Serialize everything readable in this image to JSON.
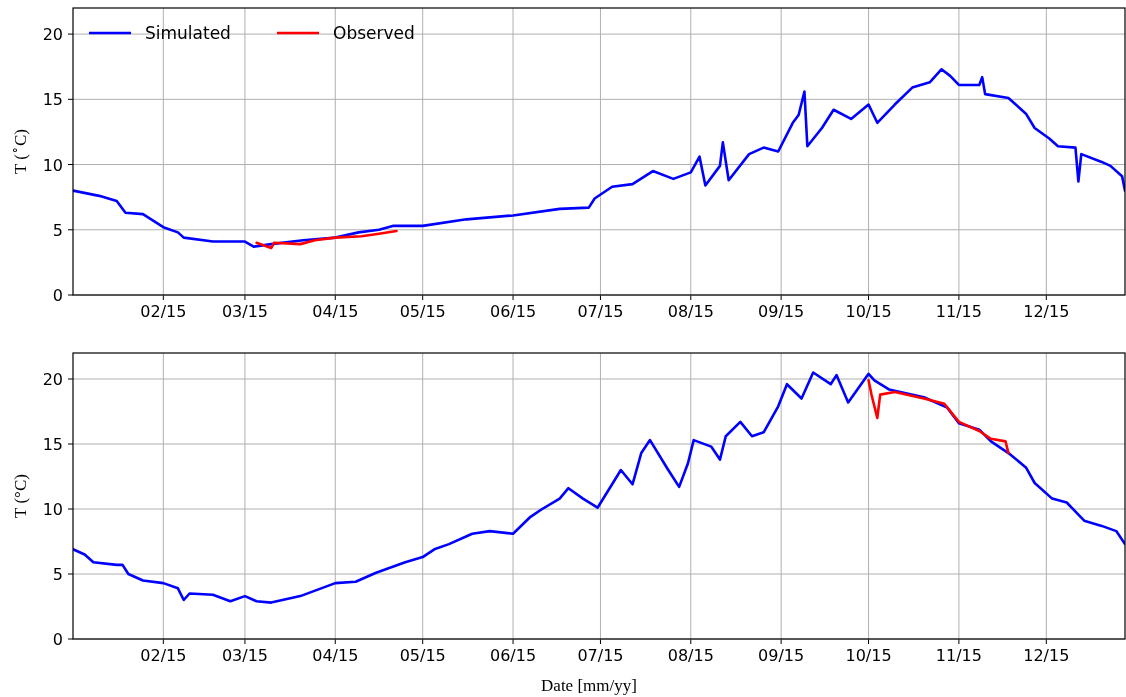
{
  "chart_data": [
    {
      "type": "line",
      "ylabel": "T ($^{∘}$C)",
      "xlim": [
        "2015-01-01",
        "2015-12-28"
      ],
      "ylim": [
        0,
        22
      ],
      "yticks": [
        0,
        5,
        10,
        15,
        20
      ],
      "xticks": [
        {
          "value": "2015-02-01",
          "label": "02/15"
        },
        {
          "value": "2015-03-01",
          "label": "03/15"
        },
        {
          "value": "2015-04-01",
          "label": "04/15"
        },
        {
          "value": "2015-05-01",
          "label": "05/15"
        },
        {
          "value": "2015-06-01",
          "label": "06/15"
        },
        {
          "value": "2015-07-01",
          "label": "07/15"
        },
        {
          "value": "2015-08-01",
          "label": "08/15"
        },
        {
          "value": "2015-09-01",
          "label": "09/15"
        },
        {
          "value": "2015-10-01",
          "label": "10/15"
        },
        {
          "value": "2015-11-01",
          "label": "11/15"
        },
        {
          "value": "2015-12-01",
          "label": "12/15"
        }
      ],
      "grid": true,
      "legend": "top left",
      "line_style": "solid",
      "series": [
        {
          "name": "Simulated",
          "color": "#0000ff",
          "x": [
            "2015-01-01",
            "2015-01-10",
            "2015-01-16",
            "2015-01-19",
            "2015-01-25",
            "2015-02-01",
            "2015-02-06",
            "2015-02-08",
            "2015-02-18",
            "2015-03-01",
            "2015-03-04",
            "2015-03-10",
            "2015-03-21",
            "2015-04-01",
            "2015-04-09",
            "2015-04-16",
            "2015-04-21",
            "2015-05-01",
            "2015-05-16",
            "2015-06-01",
            "2015-06-17",
            "2015-06-27",
            "2015-06-29",
            "2015-07-05",
            "2015-07-12",
            "2015-07-19",
            "2015-07-26",
            "2015-08-01",
            "2015-08-04",
            "2015-08-06",
            "2015-08-11",
            "2015-08-12",
            "2015-08-14",
            "2015-08-21",
            "2015-08-26",
            "2015-08-31",
            "2015-09-05",
            "2015-09-07",
            "2015-09-09",
            "2015-09-10",
            "2015-09-15",
            "2015-09-19",
            "2015-09-25",
            "2015-10-01",
            "2015-10-04",
            "2015-10-10",
            "2015-10-16",
            "2015-10-22",
            "2015-10-26",
            "2015-10-29",
            "2015-11-01",
            "2015-11-08",
            "2015-11-09",
            "2015-11-10",
            "2015-11-18",
            "2015-11-24",
            "2015-11-27",
            "2015-12-02",
            "2015-12-05",
            "2015-12-11",
            "2015-12-12",
            "2015-12-13",
            "2015-12-20",
            "2015-12-23",
            "2015-12-27",
            "2015-12-28"
          ],
          "values": [
            8.0,
            7.6,
            7.2,
            6.3,
            6.2,
            5.2,
            4.8,
            4.4,
            4.1,
            4.1,
            3.7,
            3.9,
            4.2,
            4.4,
            4.8,
            5.0,
            5.3,
            5.3,
            5.8,
            6.1,
            6.6,
            6.7,
            7.4,
            8.3,
            8.5,
            9.5,
            8.9,
            9.4,
            10.6,
            8.4,
            9.9,
            11.7,
            8.8,
            10.8,
            11.3,
            11.0,
            13.2,
            13.8,
            15.6,
            11.4,
            12.8,
            14.2,
            13.5,
            14.6,
            13.2,
            14.6,
            15.9,
            16.3,
            17.3,
            16.8,
            16.1,
            16.1,
            16.7,
            15.4,
            15.1,
            13.9,
            12.8,
            12.0,
            11.4,
            11.3,
            8.7,
            10.8,
            10.2,
            9.9,
            9.1,
            8.0
          ]
        },
        {
          "name": "Observed",
          "color": "#ff0000",
          "x": [
            "2015-03-05",
            "2015-03-10",
            "2015-03-11",
            "2015-03-20",
            "2015-03-25",
            "2015-04-01",
            "2015-04-10",
            "2015-04-16",
            "2015-04-22"
          ],
          "values": [
            4.0,
            3.6,
            4.0,
            3.9,
            4.2,
            4.4,
            4.5,
            4.7,
            4.9
          ]
        }
      ]
    },
    {
      "type": "line",
      "xlabel": "Date [mm/yy]",
      "ylabel": "T (°C)",
      "xlim": [
        "2015-01-01",
        "2015-12-28"
      ],
      "ylim": [
        0,
        22
      ],
      "yticks": [
        0,
        5,
        10,
        15,
        20
      ],
      "xticks": [
        {
          "value": "2015-02-01",
          "label": "02/15"
        },
        {
          "value": "2015-03-01",
          "label": "03/15"
        },
        {
          "value": "2015-04-01",
          "label": "04/15"
        },
        {
          "value": "2015-05-01",
          "label": "05/15"
        },
        {
          "value": "2015-06-01",
          "label": "06/15"
        },
        {
          "value": "2015-07-01",
          "label": "07/15"
        },
        {
          "value": "2015-08-01",
          "label": "08/15"
        },
        {
          "value": "2015-09-01",
          "label": "09/15"
        },
        {
          "value": "2015-10-01",
          "label": "10/15"
        },
        {
          "value": "2015-11-01",
          "label": "11/15"
        },
        {
          "value": "2015-12-01",
          "label": "12/15"
        }
      ],
      "grid": true,
      "line_style": "solid",
      "series": [
        {
          "color": "#0000ff",
          "x": [
            "2015-01-01",
            "2015-01-05",
            "2015-01-08",
            "2015-01-16",
            "2015-01-18",
            "2015-01-20",
            "2015-01-25",
            "2015-02-01",
            "2015-02-06",
            "2015-02-08",
            "2015-02-10",
            "2015-02-18",
            "2015-02-24",
            "2015-03-01",
            "2015-03-05",
            "2015-03-10",
            "2015-03-20",
            "2015-04-01",
            "2015-04-08",
            "2015-04-15",
            "2015-04-25",
            "2015-05-01",
            "2015-05-05",
            "2015-05-10",
            "2015-05-18",
            "2015-05-24",
            "2015-06-01",
            "2015-06-07",
            "2015-06-11",
            "2015-06-17",
            "2015-06-20",
            "2015-06-25",
            "2015-06-30",
            "2015-07-05",
            "2015-07-08",
            "2015-07-12",
            "2015-07-15",
            "2015-07-18",
            "2015-07-24",
            "2015-07-28",
            "2015-07-31",
            "2015-08-02",
            "2015-08-08",
            "2015-08-11",
            "2015-08-13",
            "2015-08-18",
            "2015-08-22",
            "2015-08-26",
            "2015-08-31",
            "2015-09-03",
            "2015-09-08",
            "2015-09-12",
            "2015-09-18",
            "2015-09-20",
            "2015-09-24",
            "2015-10-01",
            "2015-10-03",
            "2015-10-08",
            "2015-10-20",
            "2015-10-28",
            "2015-11-01",
            "2015-11-08",
            "2015-11-12",
            "2015-11-18",
            "2015-11-24",
            "2015-11-27",
            "2015-12-03",
            "2015-12-08",
            "2015-12-14",
            "2015-12-20",
            "2015-12-25",
            "2015-12-28"
          ],
          "values": [
            6.9,
            6.5,
            5.9,
            5.7,
            5.7,
            5.0,
            4.5,
            4.3,
            3.9,
            3.0,
            3.5,
            3.4,
            2.9,
            3.3,
            2.9,
            2.8,
            3.3,
            4.3,
            4.4,
            5.1,
            5.9,
            6.3,
            6.9,
            7.3,
            8.1,
            8.3,
            8.1,
            9.4,
            10.0,
            10.8,
            11.6,
            10.8,
            10.1,
            11.9,
            13.0,
            11.9,
            14.3,
            15.3,
            13.1,
            11.7,
            13.5,
            15.3,
            14.8,
            13.8,
            15.6,
            16.7,
            15.6,
            15.9,
            17.9,
            19.6,
            18.5,
            20.5,
            19.6,
            20.3,
            18.2,
            20.4,
            19.9,
            19.2,
            18.6,
            17.8,
            16.6,
            16.1,
            15.2,
            14.3,
            13.2,
            12.0,
            10.8,
            10.5,
            9.1,
            8.7,
            8.3,
            7.3
          ]
        },
        {
          "color": "#ff0000",
          "x": [
            "2015-10-01",
            "2015-10-02",
            "2015-10-04",
            "2015-10-05",
            "2015-10-10",
            "2015-10-20",
            "2015-10-27",
            "2015-11-01",
            "2015-11-08",
            "2015-11-12",
            "2015-11-17",
            "2015-11-18"
          ],
          "values": [
            19.9,
            18.8,
            17.0,
            18.8,
            19.0,
            18.5,
            18.1,
            16.7,
            16.0,
            15.4,
            15.2,
            14.3
          ]
        }
      ]
    }
  ]
}
